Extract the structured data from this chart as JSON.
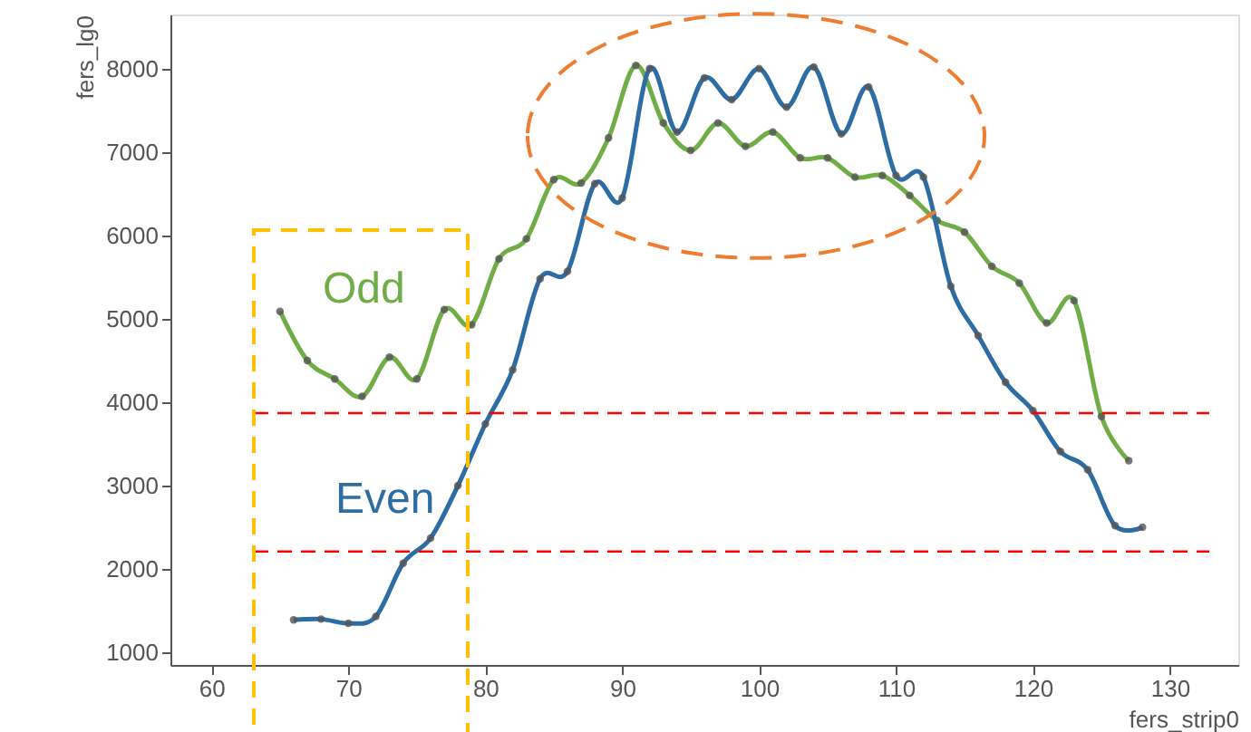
{
  "chart_data": {
    "type": "line",
    "xlabel": "fers_strip0",
    "ylabel": "fers_lg0",
    "xlim": [
      57,
      135
    ],
    "ylim": [
      850,
      8650
    ],
    "xticks": [
      60,
      70,
      80,
      90,
      100,
      110,
      120,
      130
    ],
    "yticks": [
      1000,
      2000,
      3000,
      4000,
      5000,
      6000,
      7000,
      8000
    ],
    "grid": false,
    "marker": "circle",
    "line_style": "solid",
    "series": [
      {
        "name": "Odd",
        "color": "#70ad47",
        "x": [
          65,
          67,
          69,
          71,
          73,
          75,
          77,
          79,
          81,
          83,
          85,
          87,
          89,
          91,
          93,
          95,
          97,
          99,
          101,
          103,
          105,
          107,
          109,
          111,
          113,
          115,
          117,
          119,
          121,
          123,
          125,
          127
        ],
        "values": [
          5090,
          4500,
          4280,
          4070,
          4540,
          4280,
          5110,
          4930,
          5720,
          5960,
          6670,
          6630,
          7170,
          8040,
          7350,
          7020,
          7350,
          7070,
          7240,
          6930,
          6930,
          6700,
          6720,
          6480,
          6180,
          6040,
          5630,
          5430,
          4950,
          5220,
          3830,
          3300
        ]
      },
      {
        "name": "Even",
        "color": "#2e6da4",
        "x": [
          66,
          68,
          70,
          72,
          74,
          76,
          78,
          80,
          82,
          84,
          86,
          88,
          90,
          92,
          94,
          96,
          98,
          100,
          102,
          104,
          106,
          108,
          110,
          112,
          114,
          116,
          118,
          120,
          122,
          124,
          126,
          128
        ],
        "values": [
          1390,
          1400,
          1350,
          1430,
          2070,
          2370,
          3000,
          3740,
          4390,
          5480,
          5570,
          6620,
          6450,
          8000,
          7240,
          7890,
          7630,
          8000,
          7540,
          8020,
          7220,
          7780,
          6720,
          6700,
          5390,
          4800,
          4240,
          3900,
          3410,
          3190,
          2520,
          2500
        ]
      }
    ],
    "ref_lines": [
      {
        "axis": "y",
        "value": 3870,
        "color": "#ff0000",
        "line_style": "dashed"
      },
      {
        "axis": "y",
        "value": 2210,
        "color": "#ff0000",
        "line_style": "dashed"
      }
    ]
  }
}
